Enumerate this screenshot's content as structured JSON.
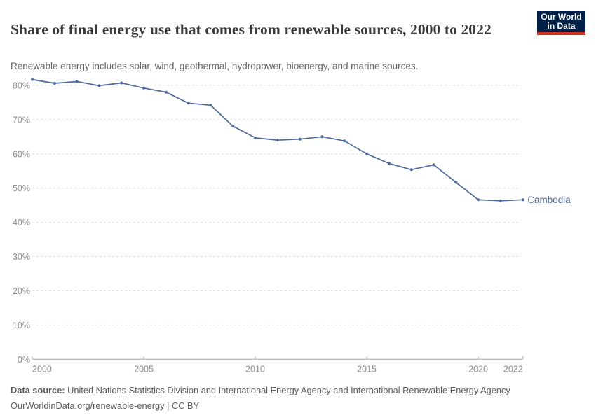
{
  "header": {
    "title": "Share of final energy use that comes from renewable sources, 2000 to 2022",
    "subtitle": "Renewable energy includes solar, wind, geothermal, hydropower, bioenergy, and marine sources.",
    "logo": {
      "line1": "Our World",
      "line2": "in Data",
      "bg_color": "#002147",
      "accent_color": "#d3301f",
      "text_color": "#ffffff"
    }
  },
  "chart_data": {
    "type": "line",
    "title": "Share of final energy use that comes from renewable sources, 2000 to 2022",
    "xlabel": "",
    "ylabel": "",
    "x": [
      2000,
      2001,
      2002,
      2003,
      2004,
      2005,
      2006,
      2007,
      2008,
      2009,
      2010,
      2011,
      2012,
      2013,
      2014,
      2015,
      2016,
      2017,
      2018,
      2019,
      2020,
      2021,
      2022
    ],
    "series": [
      {
        "name": "Cambodia",
        "color": "#4C6A9C",
        "values": [
          81.7,
          80.6,
          81.1,
          79.9,
          80.7,
          79.2,
          78.0,
          74.8,
          74.2,
          68.1,
          64.7,
          64.0,
          64.3,
          65.0,
          63.8,
          60.0,
          57.2,
          55.4,
          56.8,
          51.7,
          46.6,
          46.3,
          46.6
        ]
      }
    ],
    "xticks": [
      2000,
      2005,
      2010,
      2015,
      2020,
      2022
    ],
    "yticks": [
      0,
      10,
      20,
      30,
      40,
      50,
      60,
      70,
      80
    ],
    "ytick_suffix": "%",
    "xlim": [
      2000,
      2022
    ],
    "ylim": [
      0,
      85
    ],
    "grid": "horizontal-dashed",
    "legend": "end-of-line-label",
    "grid_color": "#dddddd",
    "axis_color": "#a5a5a5",
    "axis_text_color": "#8a8a8a"
  },
  "footer": {
    "data_source_label": "Data source:",
    "data_source_text": " United Nations Statistics Division and International Energy Agency and International Renewable Energy Agency",
    "license_link": "OurWorldinData.org/renewable-energy",
    "license_suffix": " | CC BY"
  }
}
